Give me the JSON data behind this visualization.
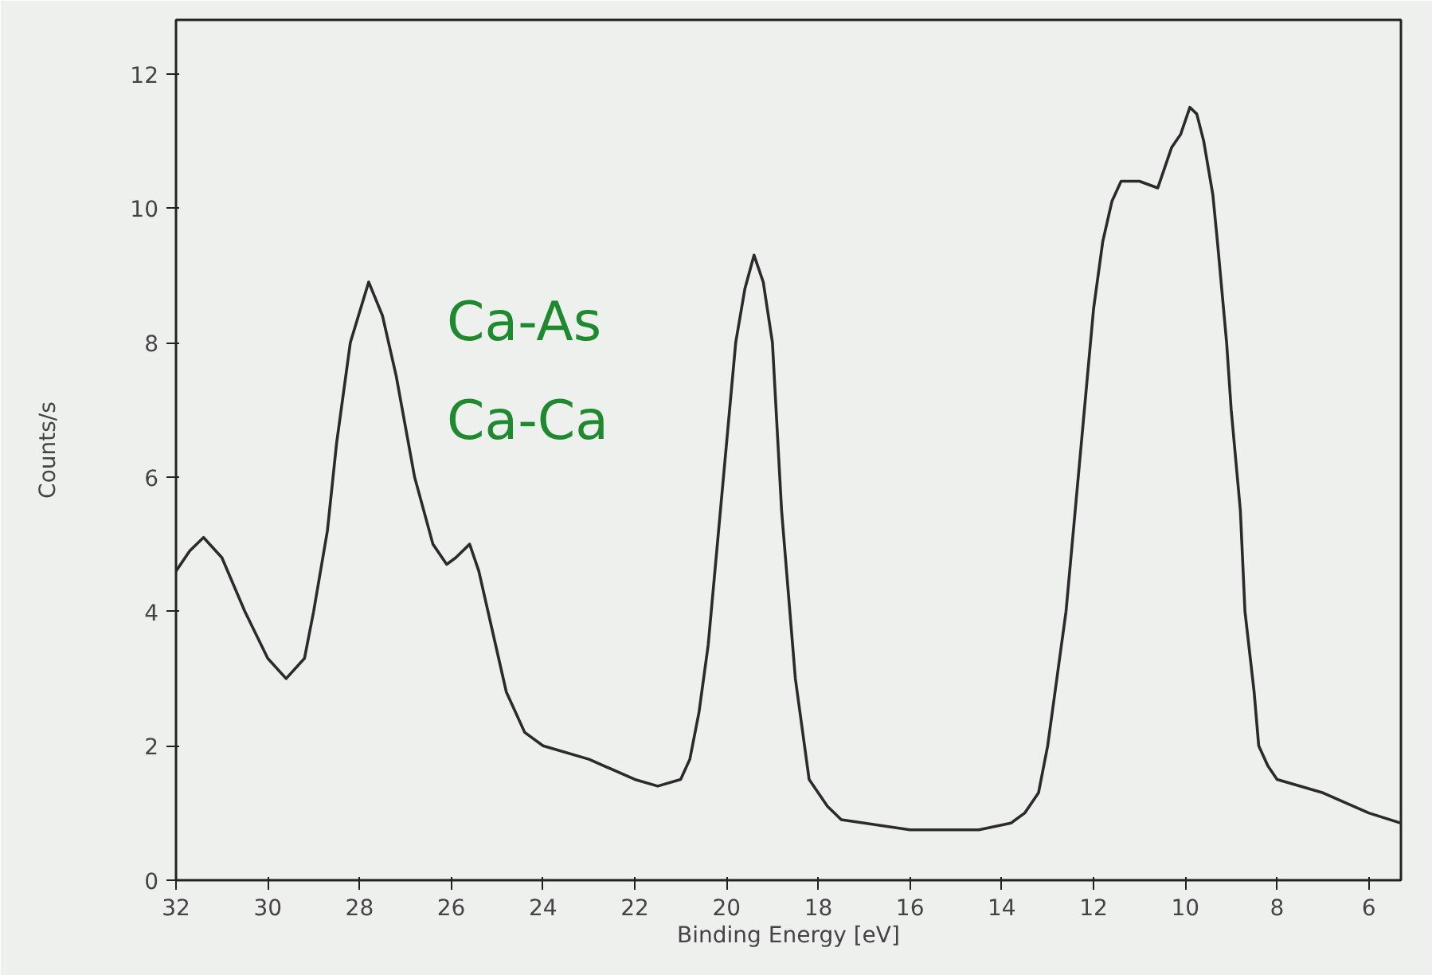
{
  "chart_data": {
    "type": "line",
    "xlabel": "Binding Energy [eV]",
    "ylabel": "Counts/s",
    "x": [
      32,
      31.7,
      31.4,
      31.0,
      30.5,
      30.0,
      29.6,
      29.2,
      29.0,
      28.7,
      28.5,
      28.2,
      27.8,
      27.5,
      27.2,
      26.8,
      26.4,
      26.1,
      25.9,
      25.6,
      25.4,
      25.2,
      24.8,
      24.4,
      24.0,
      23.0,
      22.0,
      21.5,
      21.0,
      20.8,
      20.6,
      20.4,
      20.2,
      20.0,
      19.8,
      19.6,
      19.4,
      19.2,
      19.0,
      18.8,
      18.5,
      18.2,
      17.8,
      17.5,
      16.0,
      14.5,
      13.8,
      13.5,
      13.2,
      13.0,
      12.8,
      12.6,
      12.4,
      12.2,
      12.0,
      11.8,
      11.6,
      11.4,
      11.0,
      10.6,
      10.3,
      10.1,
      9.9,
      9.75,
      9.6,
      9.4,
      9.3,
      9.1,
      9.0,
      8.8,
      8.7,
      8.5,
      8.4,
      8.2,
      8.0,
      7.0,
      6.0,
      5.3
    ],
    "values": [
      4.6,
      4.9,
      5.1,
      4.8,
      4.0,
      3.3,
      3.0,
      3.3,
      4.0,
      5.2,
      6.5,
      8.0,
      8.9,
      8.4,
      7.5,
      6.0,
      5.0,
      4.7,
      4.8,
      5.0,
      4.6,
      4.0,
      2.8,
      2.2,
      2.0,
      1.8,
      1.5,
      1.4,
      1.5,
      1.8,
      2.5,
      3.5,
      5.0,
      6.5,
      8.0,
      8.8,
      9.3,
      8.9,
      8.0,
      5.5,
      3.0,
      1.5,
      1.1,
      0.9,
      0.75,
      0.75,
      0.85,
      1.0,
      1.3,
      2.0,
      3.0,
      4.0,
      5.5,
      7.0,
      8.5,
      9.5,
      10.1,
      10.4,
      10.4,
      10.3,
      10.9,
      11.1,
      11.5,
      11.4,
      11.0,
      10.2,
      9.5,
      8.0,
      7.0,
      5.5,
      4.0,
      2.8,
      2.0,
      1.7,
      1.5,
      1.3,
      1.0,
      0.85
    ],
    "color": "#2b2b2b",
    "xlim": [
      32,
      5.3
    ],
    "ylim": [
      0,
      12.8
    ],
    "xticks": [
      32,
      30,
      28,
      26,
      24,
      22,
      20,
      18,
      16,
      14,
      12,
      10,
      8,
      6
    ],
    "yticks": [
      0,
      2,
      4,
      6,
      8,
      10,
      12
    ],
    "grid": false,
    "marker": "none",
    "line_style": "solid",
    "annotations": [
      "Ca-As",
      "Ca-Ca"
    ]
  }
}
